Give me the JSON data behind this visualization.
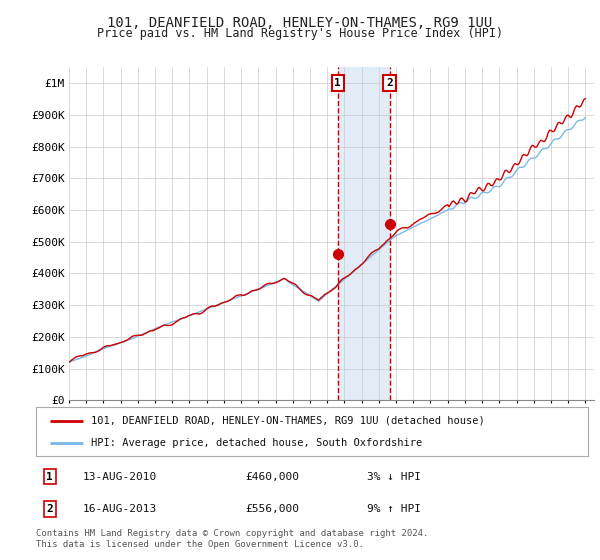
{
  "title1": "101, DEANFIELD ROAD, HENLEY-ON-THAMES, RG9 1UU",
  "title2": "Price paid vs. HM Land Registry's House Price Index (HPI)",
  "ylabel_ticks": [
    "£0",
    "£100K",
    "£200K",
    "£300K",
    "£400K",
    "£500K",
    "£600K",
    "£700K",
    "£800K",
    "£900K",
    "£1M"
  ],
  "ytick_vals": [
    0,
    100000,
    200000,
    300000,
    400000,
    500000,
    600000,
    700000,
    800000,
    900000,
    1000000
  ],
  "ylim": [
    0,
    1050000
  ],
  "legend_line1": "101, DEANFIELD ROAD, HENLEY-ON-THAMES, RG9 1UU (detached house)",
  "legend_line2": "HPI: Average price, detached house, South Oxfordshire",
  "marker1_date": "13-AUG-2010",
  "marker1_price": "£460,000",
  "marker1_hpi": "3% ↓ HPI",
  "marker1_x": 2010.62,
  "marker1_y": 460000,
  "marker2_date": "16-AUG-2013",
  "marker2_price": "£556,000",
  "marker2_hpi": "9% ↑ HPI",
  "marker2_x": 2013.62,
  "marker2_y": 556000,
  "hpi_color": "#7ab8e8",
  "price_color": "#cc0000",
  "marker_color": "#cc0000",
  "bg_color": "#ffffff",
  "grid_color": "#cccccc",
  "shade_color": "#dce9f5",
  "footnote": "Contains HM Land Registry data © Crown copyright and database right 2024.\nThis data is licensed under the Open Government Licence v3.0.",
  "xmin": 1995,
  "xmax": 2025.5
}
